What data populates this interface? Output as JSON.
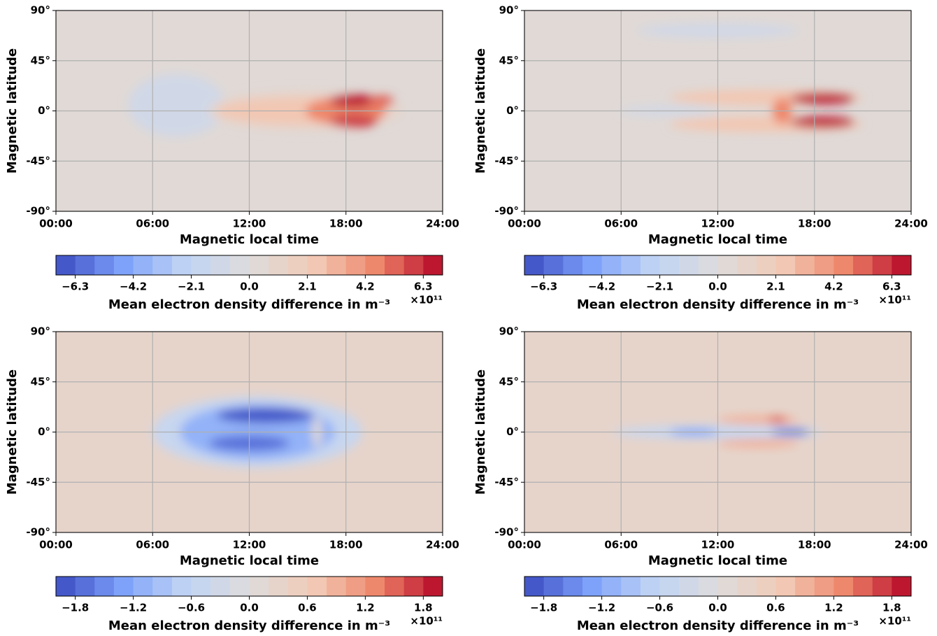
{
  "chart_data": [
    {
      "type": "contour",
      "xlabel": "Magnetic local time",
      "ylabel": "Magnetic latitude",
      "xlim": [
        0,
        24
      ],
      "xticks": [
        {
          "value": 0,
          "label": "00:00"
        },
        {
          "value": 6,
          "label": "06:00"
        },
        {
          "value": 12,
          "label": "12:00"
        },
        {
          "value": 18,
          "label": "18:00"
        },
        {
          "value": 24,
          "label": "24:00"
        }
      ],
      "ylim": [
        -90,
        90
      ],
      "yticks": [
        {
          "value": -90,
          "label": "-90°"
        },
        {
          "value": -45,
          "label": "-45°"
        },
        {
          "value": 0,
          "label": "0°"
        },
        {
          "value": 45,
          "label": "45°"
        },
        {
          "value": 90,
          "label": "90°"
        }
      ],
      "grid": true,
      "background": 0.1,
      "regions": [
        {
          "x": 7.5,
          "y": 5,
          "rx": 3,
          "ry": 28,
          "value": -0.8
        },
        {
          "x": 15.5,
          "y": 0,
          "rx": 6,
          "ry": 18,
          "value": 1.2
        },
        {
          "x": 15,
          "y": 0,
          "rx": 5,
          "ry": 12,
          "value": 2.5
        },
        {
          "x": 18,
          "y": 0,
          "rx": 2.5,
          "ry": 13,
          "value": 4.5
        },
        {
          "x": 18.5,
          "y": 9,
          "rx": 1.5,
          "ry": 6,
          "value": 6.5
        },
        {
          "x": 18.5,
          "y": -9,
          "rx": 1.5,
          "ry": 6,
          "value": 6
        },
        {
          "x": 20.2,
          "y": 9,
          "rx": 0.8,
          "ry": 5,
          "value": 5.5
        }
      ],
      "colorbar": {
        "label": "Mean electron density difference in m⁻³",
        "multiplier": "×10¹¹",
        "lim": [
          -7,
          7
        ],
        "levels": 20,
        "ticks": [
          {
            "value": -6.3,
            "label": "−6.3"
          },
          {
            "value": -4.2,
            "label": "−4.2"
          },
          {
            "value": -2.1,
            "label": "−2.1"
          },
          {
            "value": 0,
            "label": "0.0"
          },
          2.1,
          4.2,
          6.3
        ]
      },
      "colormap": [
        "#3b4cc0",
        "#7b9ff9",
        "#c0d4f5",
        "#dddcdc",
        "#f2cbb7",
        "#ee8468",
        "#b40426"
      ]
    },
    {
      "type": "contour",
      "xlabel": "Magnetic local time",
      "ylabel": "Magnetic latitude",
      "xlim": [
        0,
        24
      ],
      "xticks": [
        {
          "value": 0,
          "label": "00:00"
        },
        {
          "value": 6,
          "label": "06:00"
        },
        {
          "value": 12,
          "label": "12:00"
        },
        {
          "value": 18,
          "label": "18:00"
        },
        {
          "value": 24,
          "label": "24:00"
        }
      ],
      "ylim": [
        -90,
        90
      ],
      "yticks": [
        {
          "value": -90,
          "label": "-90°"
        },
        {
          "value": -45,
          "label": "-45°"
        },
        {
          "value": 0,
          "label": "0°"
        },
        {
          "value": 45,
          "label": "45°"
        },
        {
          "value": 90,
          "label": "90°"
        }
      ],
      "grid": true,
      "background": 0.1,
      "regions": [
        {
          "x": 12,
          "y": 72,
          "rx": 5,
          "ry": 6,
          "value": -0.8
        },
        {
          "x": 9,
          "y": 0,
          "rx": 3,
          "ry": 4,
          "value": -1.2
        },
        {
          "x": 15,
          "y": 12,
          "rx": 6,
          "ry": 7,
          "value": 2.2
        },
        {
          "x": 15,
          "y": -12,
          "rx": 6,
          "ry": 7,
          "value": 2.2
        },
        {
          "x": 18.5,
          "y": 11,
          "rx": 2,
          "ry": 5,
          "value": 6.5
        },
        {
          "x": 18.5,
          "y": -10,
          "rx": 2,
          "ry": 5,
          "value": 6.5
        },
        {
          "x": 16,
          "y": 0,
          "rx": 0.6,
          "ry": 12,
          "value": 4.5
        }
      ],
      "colorbar": {
        "label": "Mean electron density difference in m⁻³",
        "multiplier": "×10¹¹",
        "lim": [
          -7,
          7
        ],
        "levels": 20,
        "ticks": [
          {
            "value": -6.3,
            "label": "−6.3"
          },
          {
            "value": -4.2,
            "label": "−4.2"
          },
          {
            "value": -2.1,
            "label": "−2.1"
          },
          {
            "value": 0,
            "label": "0.0"
          },
          2.1,
          4.2,
          6.3
        ]
      },
      "colormap": [
        "#3b4cc0",
        "#7b9ff9",
        "#c0d4f5",
        "#dddcdc",
        "#f2cbb7",
        "#ee8468",
        "#b40426"
      ]
    },
    {
      "type": "contour",
      "xlabel": "Magnetic local time",
      "ylabel": "Magnetic latitude",
      "xlim": [
        0,
        24
      ],
      "xticks": [
        {
          "value": 0,
          "label": "00:00"
        },
        {
          "value": 6,
          "label": "06:00"
        },
        {
          "value": 12,
          "label": "12:00"
        },
        {
          "value": 18,
          "label": "18:00"
        },
        {
          "value": 24,
          "label": "24:00"
        }
      ],
      "ylim": [
        -90,
        90
      ],
      "yticks": [
        {
          "value": -90,
          "label": "-90°"
        },
        {
          "value": -45,
          "label": "-45°"
        },
        {
          "value": 0,
          "label": "0°"
        },
        {
          "value": 45,
          "label": "45°"
        },
        {
          "value": 90,
          "label": "90°"
        }
      ],
      "grid": true,
      "background": 0.3,
      "regions": [
        {
          "x": 12.5,
          "y": 0,
          "rx": 6.5,
          "ry": 32,
          "value": -0.5
        },
        {
          "x": 12.5,
          "y": 0,
          "rx": 4.8,
          "ry": 25,
          "value": -1.1
        },
        {
          "x": 13,
          "y": 15,
          "rx": 3,
          "ry": 7,
          "value": -1.9
        },
        {
          "x": 12,
          "y": -10,
          "rx": 2.5,
          "ry": 7,
          "value": -1.6
        },
        {
          "x": 16.2,
          "y": 0,
          "rx": 0.3,
          "ry": 14,
          "value": 0
        }
      ],
      "colorbar": {
        "label": "Mean electron density difference in m⁻³",
        "multiplier": "×10¹¹",
        "lim": [
          -2,
          2
        ],
        "levels": 20,
        "ticks": [
          {
            "value": -1.8,
            "label": "−1.8"
          },
          {
            "value": -1.2,
            "label": "−1.2"
          },
          {
            "value": -0.6,
            "label": "−0.6"
          },
          {
            "value": 0,
            "label": "0.0"
          },
          0.6,
          1.2,
          1.8
        ]
      },
      "colormap": [
        "#3b4cc0",
        "#7b9ff9",
        "#c0d4f5",
        "#dddcdc",
        "#f2cbb7",
        "#ee8468",
        "#b40426"
      ]
    },
    {
      "type": "contour",
      "xlabel": "Magnetic local time",
      "ylabel": "Magnetic latitude",
      "xlim": [
        0,
        24
      ],
      "xticks": [
        {
          "value": 0,
          "label": "00:00"
        },
        {
          "value": 6,
          "label": "06:00"
        },
        {
          "value": 12,
          "label": "12:00"
        },
        {
          "value": 18,
          "label": "18:00"
        },
        {
          "value": 24,
          "label": "24:00"
        }
      ],
      "ylim": [
        -90,
        90
      ],
      "yticks": [
        {
          "value": -90,
          "label": "-90°"
        },
        {
          "value": -45,
          "label": "-45°"
        },
        {
          "value": 0,
          "label": "0°"
        },
        {
          "value": 45,
          "label": "45°"
        },
        {
          "value": 90,
          "label": "90°"
        }
      ],
      "grid": true,
      "background": 0.3,
      "regions": [
        {
          "x": 12,
          "y": 0,
          "rx": 6.5,
          "ry": 6,
          "value": -0.5
        },
        {
          "x": 10.5,
          "y": 0,
          "rx": 1.5,
          "ry": 3,
          "value": -1.4
        },
        {
          "x": 16.5,
          "y": 0,
          "rx": 1.2,
          "ry": 3,
          "value": -1.6
        },
        {
          "x": 14.5,
          "y": 11,
          "rx": 2.5,
          "ry": 4,
          "value": 0.8
        },
        {
          "x": 14.5,
          "y": -10,
          "rx": 2.5,
          "ry": 4,
          "value": 0.8
        },
        {
          "x": 15.7,
          "y": 11,
          "rx": 0.6,
          "ry": 3,
          "value": 1.5
        }
      ],
      "colorbar": {
        "label": "Mean electron density difference in m⁻³",
        "multiplier": "×10¹¹",
        "lim": [
          -2,
          2
        ],
        "levels": 20,
        "ticks": [
          {
            "value": -1.8,
            "label": "−1.8"
          },
          {
            "value": -1.2,
            "label": "−1.2"
          },
          {
            "value": -0.6,
            "label": "−0.6"
          },
          {
            "value": 0,
            "label": "0.0"
          },
          0.6,
          1.2,
          1.8
        ]
      },
      "colormap": [
        "#3b4cc0",
        "#7b9ff9",
        "#c0d4f5",
        "#dddcdc",
        "#f2cbb7",
        "#ee8468",
        "#b40426"
      ]
    }
  ]
}
